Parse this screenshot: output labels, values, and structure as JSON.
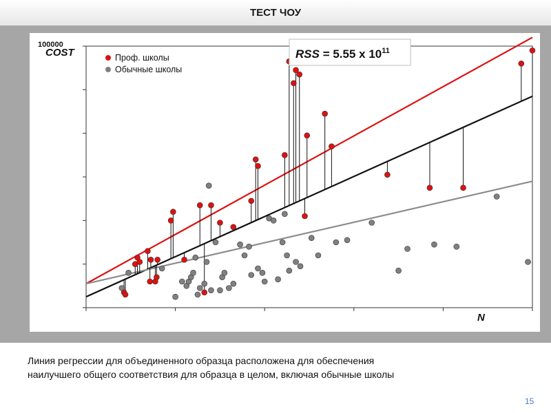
{
  "slide": {
    "title": "ТЕСТ ЧОУ",
    "caption_line1": "Линия регрессии для объединенного образца расположена для обеспечения",
    "caption_line2": "наилучшего общего соответствия для образца в целом, включая обычные школы",
    "page_number": "15"
  },
  "chart_data": {
    "type": "scatter",
    "ylabel": "COST",
    "xlabel": "N",
    "ytick_overlap_label": "100000",
    "rss_text_prefix": "RSS = 5.55 x 10",
    "rss_exponent": "11",
    "xlim": [
      0,
      1000
    ],
    "ylim": [
      0,
      600000
    ],
    "series": [
      {
        "name": "Проф. школы",
        "color": "#dd1111",
        "points": [
          [
            85,
            35000
          ],
          [
            88,
            30000
          ],
          [
            110,
            100000
          ],
          [
            115,
            115000
          ],
          [
            120,
            105000
          ],
          [
            138,
            130000
          ],
          [
            143,
            60000
          ],
          [
            145,
            110000
          ],
          [
            155,
            60000
          ],
          [
            158,
            70000
          ],
          [
            160,
            110000
          ],
          [
            190,
            200000
          ],
          [
            195,
            220000
          ],
          [
            220,
            110000
          ],
          [
            255,
            235000
          ],
          [
            265,
            35000
          ],
          [
            280,
            235000
          ],
          [
            300,
            195000
          ],
          [
            330,
            185000
          ],
          [
            370,
            245000
          ],
          [
            380,
            340000
          ],
          [
            385,
            325000
          ],
          [
            445,
            350000
          ],
          [
            455,
            565000
          ],
          [
            465,
            515000
          ],
          [
            470,
            545000
          ],
          [
            478,
            535000
          ],
          [
            490,
            210000
          ],
          [
            495,
            395000
          ],
          [
            535,
            445000
          ],
          [
            550,
            370000
          ],
          [
            675,
            305000
          ],
          [
            770,
            275000
          ],
          [
            845,
            275000
          ],
          [
            975,
            560000
          ],
          [
            1000,
            590000
          ]
        ]
      },
      {
        "name": "Обычные школы",
        "color": "#808080",
        "points": [
          [
            80,
            45000
          ],
          [
            95,
            80000
          ],
          [
            170,
            90000
          ],
          [
            200,
            25000
          ],
          [
            215,
            60000
          ],
          [
            225,
            50000
          ],
          [
            230,
            60000
          ],
          [
            235,
            70000
          ],
          [
            240,
            80000
          ],
          [
            245,
            115000
          ],
          [
            250,
            30000
          ],
          [
            255,
            45000
          ],
          [
            265,
            55000
          ],
          [
            270,
            105000
          ],
          [
            275,
            280000
          ],
          [
            280,
            40000
          ],
          [
            290,
            150000
          ],
          [
            300,
            40000
          ],
          [
            305,
            70000
          ],
          [
            310,
            80000
          ],
          [
            320,
            45000
          ],
          [
            330,
            55000
          ],
          [
            345,
            145000
          ],
          [
            355,
            120000
          ],
          [
            365,
            140000
          ],
          [
            370,
            75000
          ],
          [
            385,
            90000
          ],
          [
            395,
            80000
          ],
          [
            400,
            60000
          ],
          [
            410,
            205000
          ],
          [
            420,
            200000
          ],
          [
            430,
            65000
          ],
          [
            440,
            150000
          ],
          [
            445,
            215000
          ],
          [
            450,
            120000
          ],
          [
            455,
            85000
          ],
          [
            470,
            105000
          ],
          [
            480,
            95000
          ],
          [
            505,
            160000
          ],
          [
            520,
            120000
          ],
          [
            560,
            150000
          ],
          [
            585,
            155000
          ],
          [
            640,
            195000
          ],
          [
            700,
            85000
          ],
          [
            720,
            135000
          ],
          [
            780,
            145000
          ],
          [
            830,
            140000
          ],
          [
            920,
            255000
          ],
          [
            990,
            105000
          ]
        ]
      }
    ],
    "regression_lines": [
      {
        "name": "prof",
        "color": "#dd1111",
        "x": [
          0,
          1000
        ],
        "y": [
          55000,
          620000
        ]
      },
      {
        "name": "pooled",
        "color": "#111111",
        "x": [
          0,
          1000
        ],
        "y": [
          25000,
          485000
        ]
      },
      {
        "name": "regular",
        "color": "#8c8c8c",
        "x": [
          0,
          1000
        ],
        "y": [
          55000,
          290000
        ]
      }
    ]
  }
}
